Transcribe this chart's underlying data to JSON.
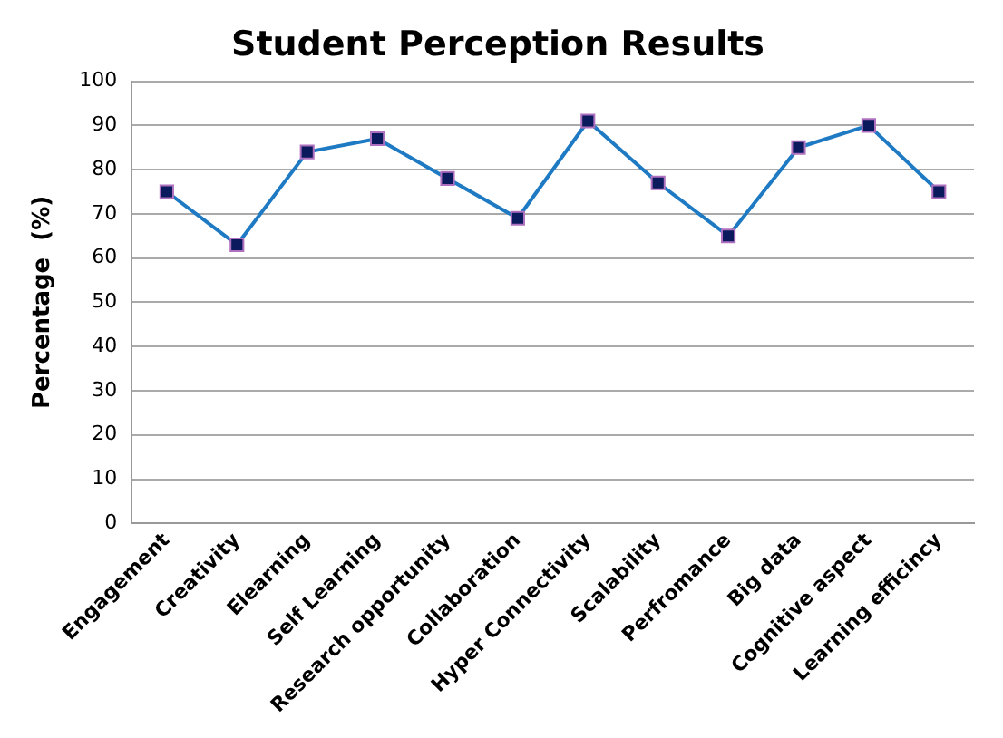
{
  "chart_data": {
    "type": "line",
    "title": "Student Perception Results",
    "ylabel": "Percentage  (%)",
    "categories": [
      "Engagement",
      "Creativity",
      "Elearning",
      "Self Learning",
      "Research opportunity",
      "Collaboration",
      "Hyper Connectivity",
      "Scalability",
      "Perfromance",
      "Big data",
      "Cognitive aspect",
      "Learning efficincy"
    ],
    "series": [
      {
        "color": "#1f7ac4",
        "values": [
          75,
          63,
          84,
          87,
          78,
          69,
          91,
          77,
          65,
          85,
          90,
          75
        ]
      }
    ],
    "ylim": [
      0,
      100
    ],
    "yticks": [
      0,
      10,
      20,
      30,
      40,
      50,
      60,
      70,
      80,
      90,
      100
    ],
    "grid": "y",
    "legend": false,
    "marker": "square",
    "line_style": "solid"
  }
}
